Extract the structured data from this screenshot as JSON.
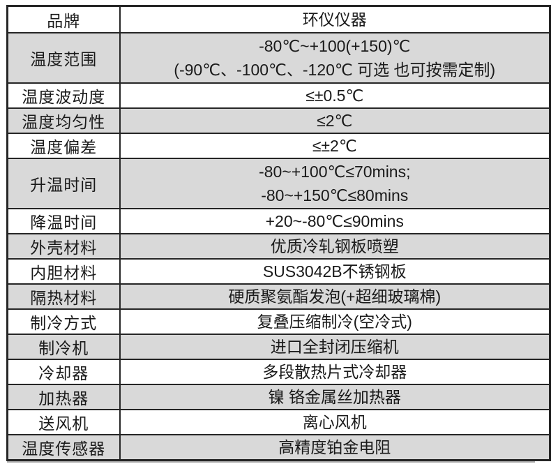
{
  "colors": {
    "background": "#ffffff",
    "border": "#262626",
    "row_shaded": "#d9d9d9",
    "text": "#1a1a1a"
  },
  "table": {
    "rows": [
      {
        "label": "品牌",
        "lines": [
          "环仪仪器"
        ]
      },
      {
        "label": "温度范围",
        "lines": [
          "-80℃~+100(+150)℃",
          "(-90℃、-100℃、-120℃ 可选 也可按需定制)"
        ]
      },
      {
        "label": "温度波动度",
        "lines": [
          "≤±0.5℃"
        ]
      },
      {
        "label": "温度均匀性",
        "lines": [
          "≤2℃"
        ]
      },
      {
        "label": "温度偏差",
        "lines": [
          "≤±2℃"
        ]
      },
      {
        "label": "升温时间",
        "lines": [
          "-80~+100℃≤70mins;",
          "-80~+150℃≤80mins"
        ]
      },
      {
        "label": "降温时间",
        "lines": [
          "+20~-80℃≤90mins"
        ]
      },
      {
        "label": "外壳材料",
        "lines": [
          "优质冷轧钢板喷塑"
        ]
      },
      {
        "label": "内胆材料",
        "lines": [
          "SUS3042B不锈钢板"
        ]
      },
      {
        "label": "隔热材料",
        "lines": [
          "硬质聚氨酯发泡(+超细玻璃棉)"
        ]
      },
      {
        "label": "制冷方式",
        "lines": [
          "复叠压缩制冷(空冷式)"
        ]
      },
      {
        "label": "制冷机",
        "lines": [
          "进口全封闭压缩机"
        ]
      },
      {
        "label": "冷却器",
        "lines": [
          "多段散热片式冷却器"
        ]
      },
      {
        "label": "加热器",
        "lines": [
          "镍 铬金属丝加热器"
        ]
      },
      {
        "label": "送风机",
        "lines": [
          "离心风机"
        ]
      },
      {
        "label": "温度传感器",
        "lines": [
          "高精度铂金电阻"
        ]
      }
    ]
  }
}
